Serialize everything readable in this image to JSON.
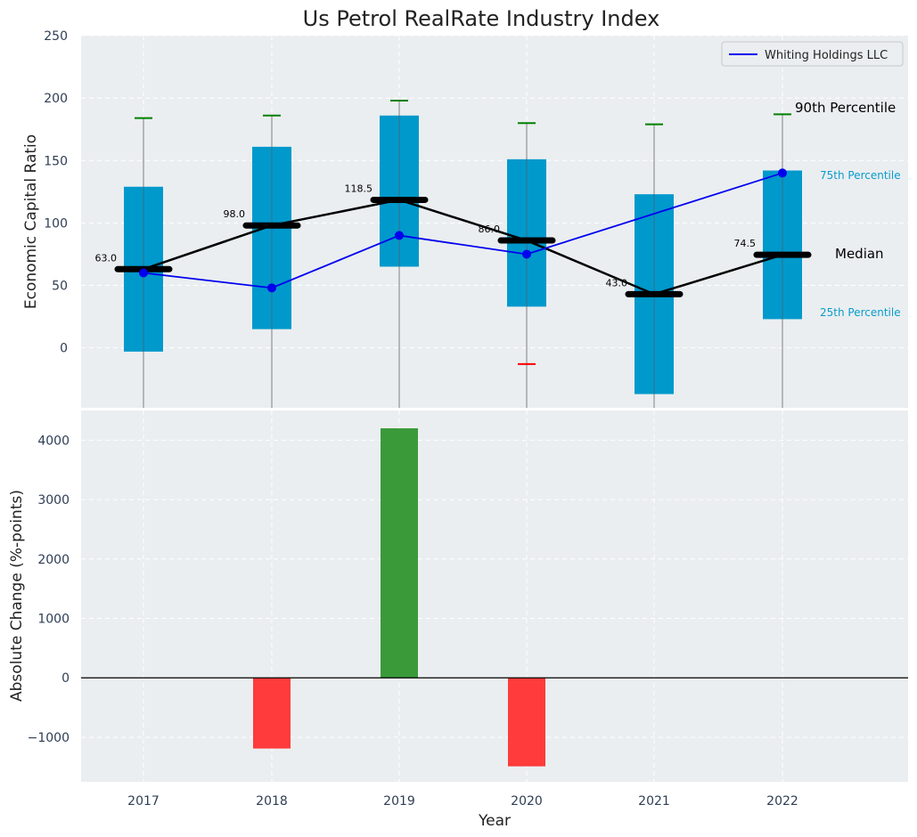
{
  "chart_data": [
    {
      "type": "box",
      "title": "Us Petrol RealRate Industry Index",
      "ylabel": "Economic Capital Ratio",
      "ylim": [
        -48,
        250
      ],
      "yticks": [
        0,
        50,
        100,
        150,
        200,
        250
      ],
      "categories": [
        "2017",
        "2018",
        "2019",
        "2020",
        "2021",
        "2022"
      ],
      "p25": [
        -3,
        15,
        65,
        33,
        -37,
        23
      ],
      "p75": [
        129,
        161,
        186,
        151,
        123,
        142
      ],
      "median": [
        63.0,
        98.0,
        118.5,
        86.0,
        43.0,
        74.5
      ],
      "median_labels": [
        "63.0",
        "98.0",
        "118.5",
        "86.0",
        "43.0",
        "74.5"
      ],
      "p90": [
        184,
        186,
        198,
        180,
        179,
        187
      ],
      "p10": [
        null,
        null,
        null,
        -13,
        null,
        null
      ],
      "company": {
        "name": "Whiting Holdings LLC",
        "values": [
          60,
          48,
          90,
          75,
          null,
          140
        ]
      },
      "annotations": {
        "p90": "90th Percentile",
        "p75": "75th Percentile",
        "median": "Median",
        "p25": "25th Percentile"
      },
      "legend_position": "top-right"
    },
    {
      "type": "bar",
      "ylabel": "Absolute Change (%-points)",
      "xlabel": "Year",
      "ylim": [
        -1750,
        4500
      ],
      "yticks": [
        -1000,
        0,
        1000,
        2000,
        3000,
        4000
      ],
      "ytick_labels": [
        "−1000",
        "0",
        "1000",
        "2000",
        "3000",
        "4000"
      ],
      "categories": [
        "2017",
        "2018",
        "2019",
        "2020",
        "2021",
        "2022"
      ],
      "values": [
        0,
        -1190,
        4200,
        -1490,
        0,
        0
      ]
    }
  ],
  "colors": {
    "box": "#0099cc",
    "median": "#000000",
    "company": "#0000ee",
    "whisker_top": "#008000",
    "whisker_bottom": "#ff0000",
    "positive": "#3a9a3a",
    "negative": "#ff3b3b",
    "bg": "#eaeef0"
  }
}
